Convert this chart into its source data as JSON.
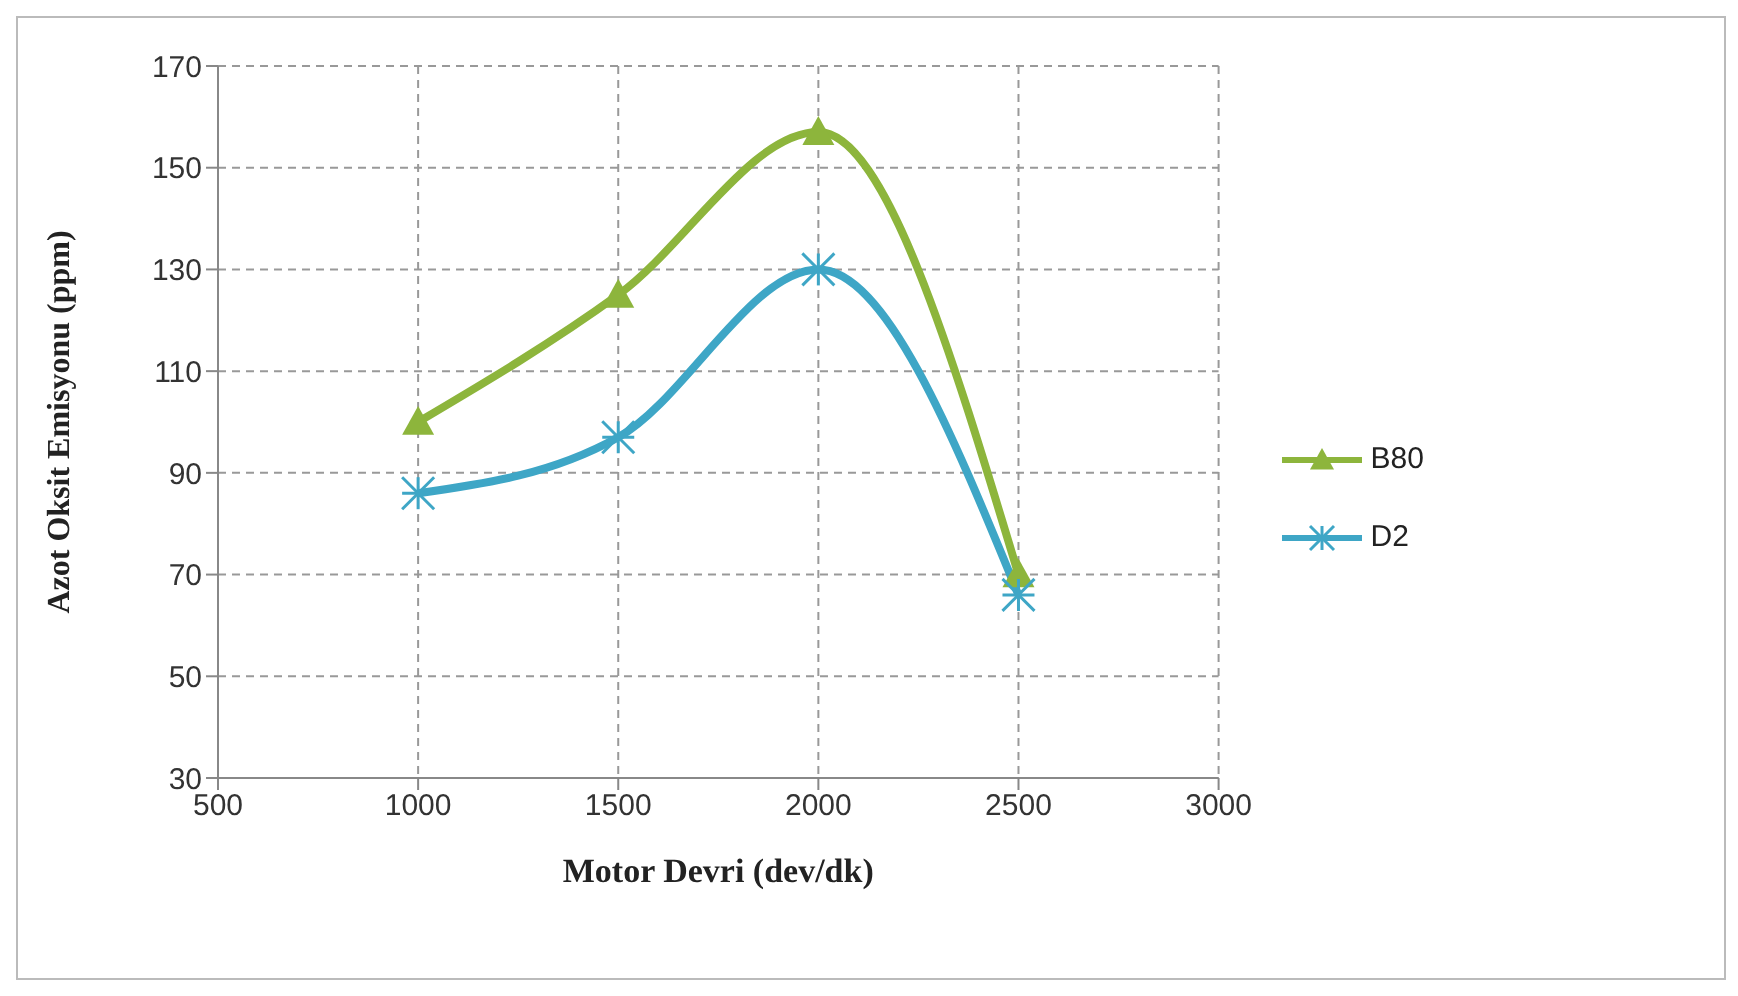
{
  "chart_data": {
    "type": "line",
    "xlabel": "Motor Devri (dev/dk)",
    "ylabel": "Azot Oksit Emisyonu (ppm)",
    "x": [
      1000,
      1500,
      2000,
      2500
    ],
    "series": [
      {
        "name": "B80",
        "color": "#8db53c",
        "values": [
          100,
          125,
          157,
          70
        ],
        "marker": "triangle"
      },
      {
        "name": "D2",
        "color": "#3ea6c6",
        "values": [
          86,
          97,
          130,
          66
        ],
        "marker": "cross"
      }
    ],
    "xlim": [
      500,
      3000
    ],
    "xticks": [
      500,
      1000,
      1500,
      2000,
      2500,
      3000
    ],
    "ylim": [
      30,
      170
    ],
    "yticks": [
      30,
      50,
      70,
      90,
      110,
      130,
      150,
      170
    ],
    "grid": true,
    "legend": "right"
  }
}
